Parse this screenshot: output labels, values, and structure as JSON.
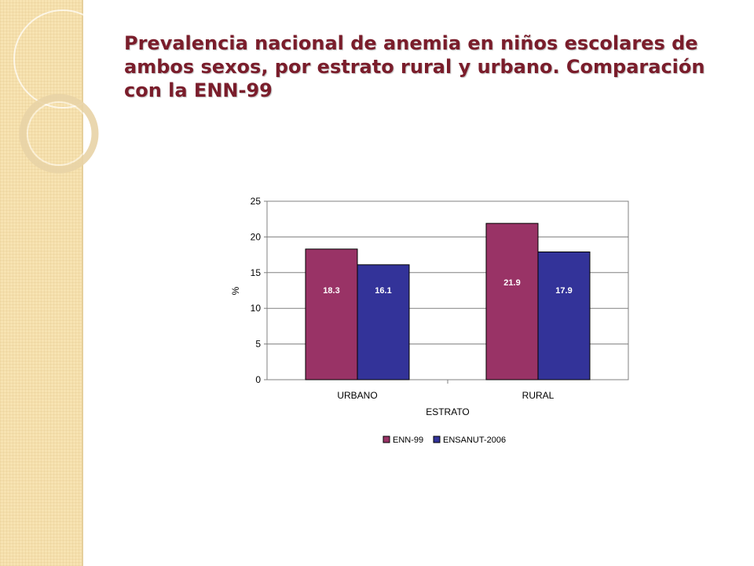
{
  "slide": {
    "title": "Prevalencia nacional de anemia en niños escolares de ambos sexos, por estrato rural y urbano. Comparación con la ENN-99"
  },
  "colors": {
    "title": "#7a1d2b",
    "sidebar": "#f7e3b2",
    "series_enn99": "#993366",
    "series_ensanut": "#333399"
  },
  "chart_data": {
    "type": "bar",
    "categories": [
      "URBANO",
      "RURAL"
    ],
    "series": [
      {
        "name": "ENN-99",
        "values": [
          18.3,
          21.9
        ],
        "color": "#993366"
      },
      {
        "name": "ENSANUT-2006",
        "values": [
          16.1,
          17.9
        ],
        "color": "#333399"
      }
    ],
    "xlabel": "ESTRATO",
    "ylabel": "%",
    "ylim": [
      0,
      25
    ],
    "yticks": [
      0,
      5,
      10,
      15,
      20,
      25
    ],
    "grid": true,
    "legend": "bottom",
    "data_labels": [
      "18.3",
      "16.1",
      "21.9",
      "17.9"
    ]
  }
}
